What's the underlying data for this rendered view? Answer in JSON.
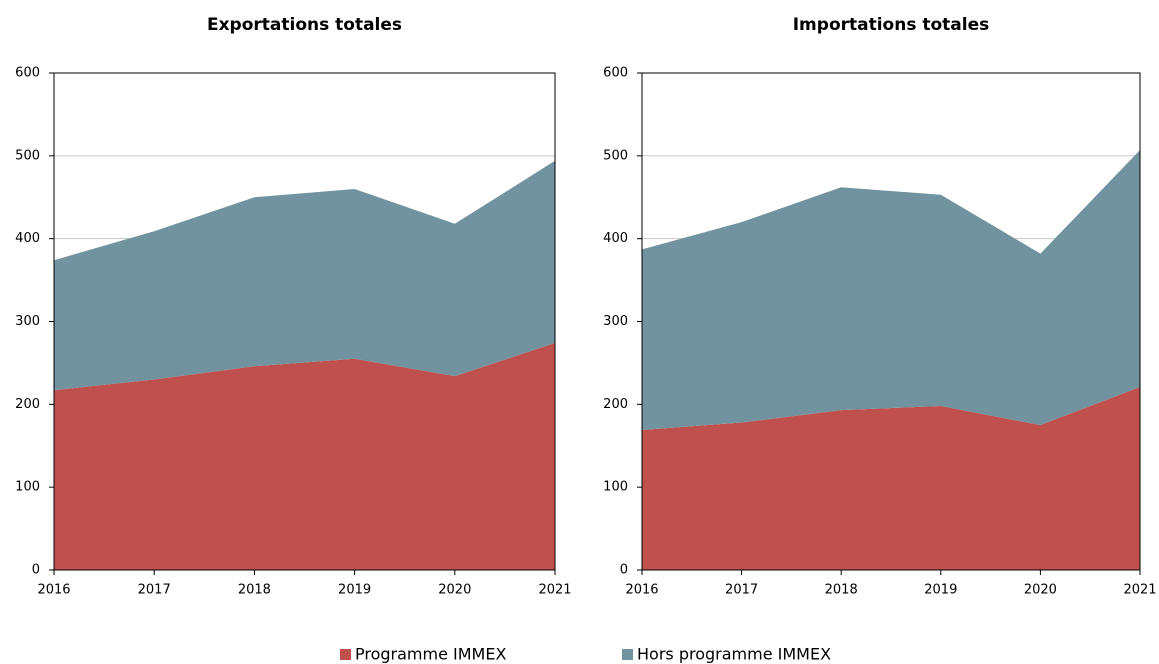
{
  "chart_data": [
    {
      "type": "area",
      "title": "Exportations totales",
      "categories": [
        "2016",
        "2017",
        "2018",
        "2019",
        "2020",
        "2021"
      ],
      "series": [
        {
          "name": "Programme IMMEX",
          "color": "#c0504d",
          "values": [
            217,
            230,
            246,
            255,
            234,
            274
          ]
        },
        {
          "name": "Hors programme IMMEX",
          "color": "#71939f",
          "values": [
            157,
            179,
            204,
            205,
            184,
            220
          ]
        }
      ],
      "stacked": true,
      "ylim": [
        0,
        600
      ],
      "yticks": [
        0,
        100,
        200,
        300,
        400,
        500,
        600
      ],
      "grid": true
    },
    {
      "type": "area",
      "title": "Importations totales",
      "categories": [
        "2016",
        "2017",
        "2018",
        "2019",
        "2020",
        "2021"
      ],
      "series": [
        {
          "name": "Programme IMMEX",
          "color": "#c0504d",
          "values": [
            169,
            178,
            193,
            198,
            175,
            221
          ]
        },
        {
          "name": "Hors programme IMMEX",
          "color": "#71939f",
          "values": [
            218,
            242,
            269,
            255,
            207,
            286
          ]
        }
      ],
      "stacked": true,
      "ylim": [
        0,
        600
      ],
      "yticks": [
        0,
        100,
        200,
        300,
        400,
        500,
        600
      ],
      "grid": true
    }
  ]
}
